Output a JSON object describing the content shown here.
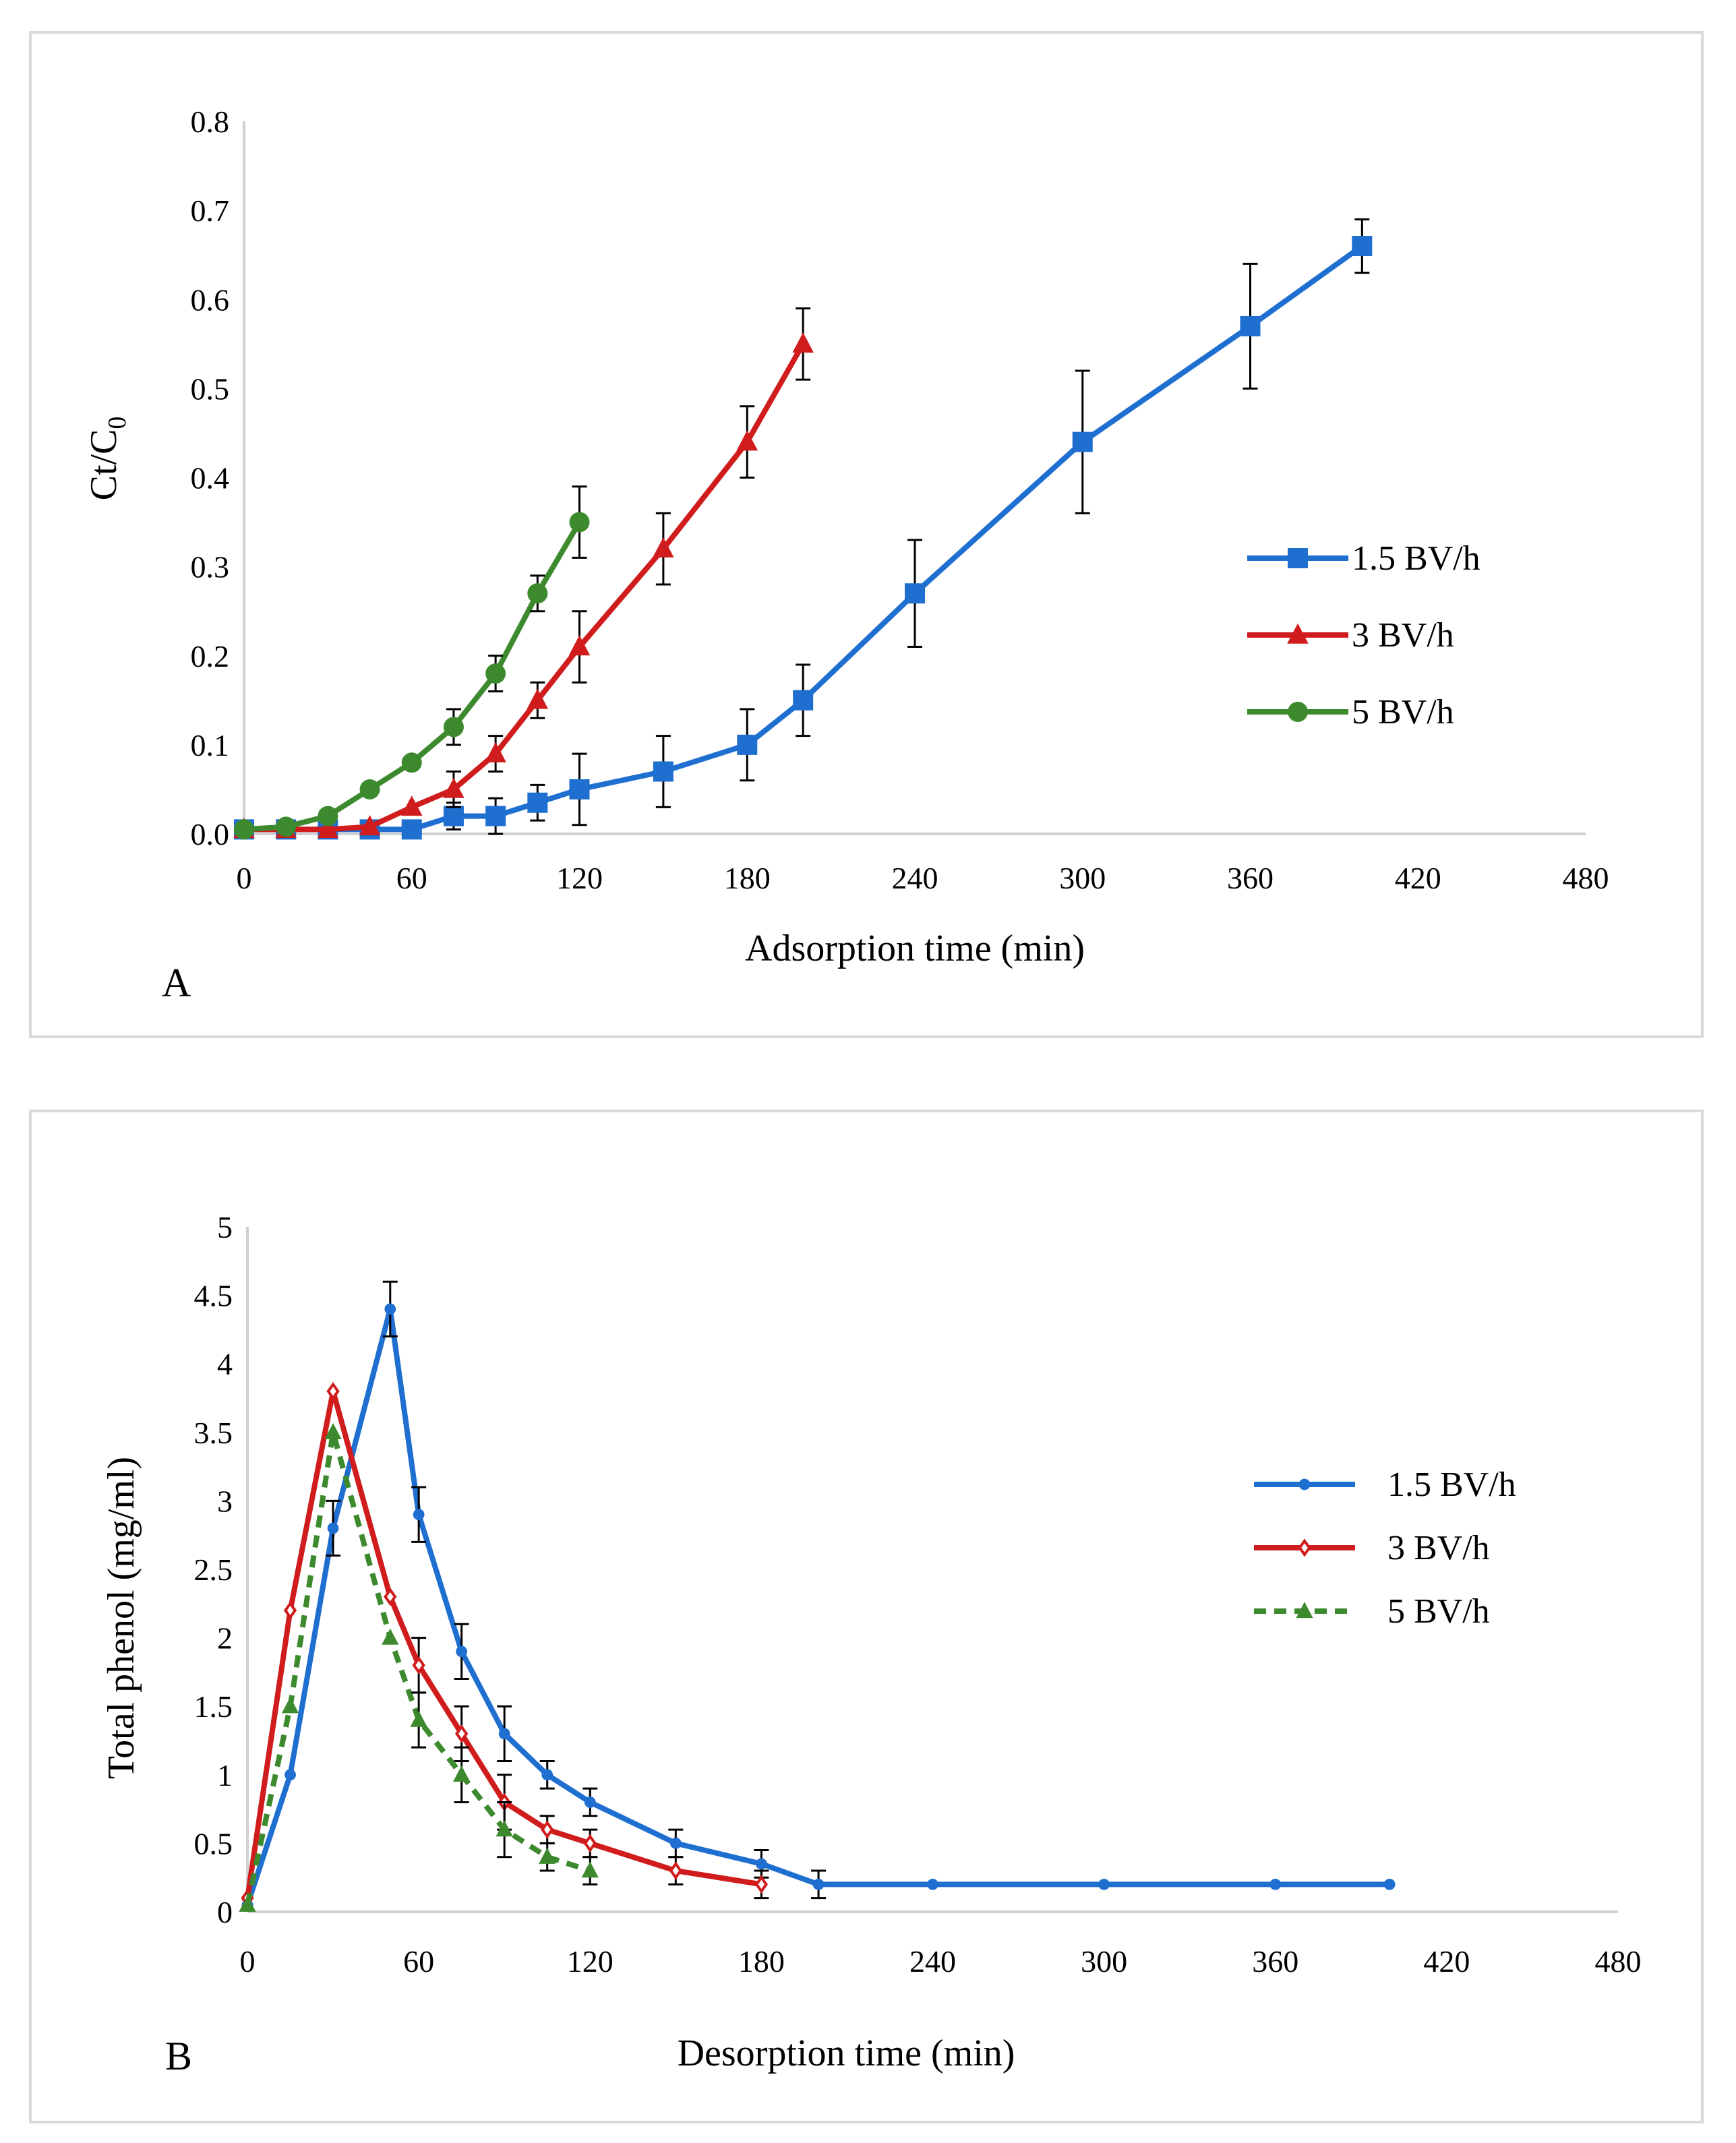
{
  "chart_data": [
    {
      "type": "line",
      "panel_label": "A",
      "xlabel": "Adsorption time (min)",
      "ylabel_main": "Ct/C",
      "ylabel_sub": "0",
      "xlim": [
        0,
        480
      ],
      "ylim": [
        0,
        0.8
      ],
      "x_ticks": [
        0,
        60,
        120,
        180,
        240,
        300,
        360,
        420,
        480
      ],
      "y_ticks": [
        0,
        0.1,
        0.2,
        0.3,
        0.4,
        0.5,
        0.6,
        0.7,
        0.8
      ],
      "y_tick_labels": [
        "0.0",
        "0.1",
        "0.2",
        "0.3",
        "0.4",
        "0.5",
        "0.6",
        "0.7",
        "0.8"
      ],
      "grid": false,
      "legend_position": "right",
      "series": [
        {
          "name": "1.5 BV/h",
          "color": "#1f6fd1",
          "marker": "square",
          "dashed": false,
          "x": [
            0,
            15,
            30,
            45,
            60,
            75,
            90,
            105,
            120,
            150,
            180,
            200,
            240,
            300,
            360,
            400
          ],
          "y": [
            0.005,
            0.005,
            0.005,
            0.005,
            0.005,
            0.02,
            0.02,
            0.035,
            0.05,
            0.07,
            0.1,
            0.15,
            0.27,
            0.44,
            0.57,
            0.66
          ],
          "err": [
            0,
            0,
            0,
            0,
            0,
            0.015,
            0.02,
            0.02,
            0.04,
            0.04,
            0.04,
            0.04,
            0.06,
            0.08,
            0.07,
            0.03
          ]
        },
        {
          "name": "3 BV/h",
          "color": "#d01c1c",
          "marker": "triangle",
          "dashed": false,
          "x": [
            0,
            15,
            30,
            45,
            60,
            75,
            90,
            105,
            120,
            150,
            180,
            200
          ],
          "y": [
            0.005,
            0.005,
            0.005,
            0.008,
            0.03,
            0.05,
            0.09,
            0.15,
            0.21,
            0.32,
            0.44,
            0.55
          ],
          "err": [
            0,
            0,
            0,
            0,
            0,
            0.02,
            0.02,
            0.02,
            0.04,
            0.04,
            0.04,
            0.04
          ]
        },
        {
          "name": "5 BV/h",
          "color": "#3d8a2e",
          "marker": "circle",
          "dashed": false,
          "x": [
            0,
            15,
            30,
            45,
            60,
            75,
            90,
            105,
            120
          ],
          "y": [
            0.005,
            0.008,
            0.02,
            0.05,
            0.08,
            0.12,
            0.18,
            0.27,
            0.35
          ],
          "err": [
            0,
            0,
            0,
            0,
            0,
            0.02,
            0.02,
            0.02,
            0.04
          ]
        }
      ]
    },
    {
      "type": "line",
      "panel_label": "B",
      "xlabel": "Desorption time (min)",
      "ylabel_main": "Total phenol (mg/ml)",
      "ylabel_sub": "",
      "xlim": [
        0,
        480
      ],
      "ylim": [
        0,
        5
      ],
      "x_ticks": [
        0,
        60,
        120,
        180,
        240,
        300,
        360,
        420,
        480
      ],
      "y_ticks": [
        0,
        0.5,
        1,
        1.5,
        2,
        2.5,
        3,
        3.5,
        4,
        4.5,
        5
      ],
      "y_tick_labels": [
        "0",
        "0.5",
        "1",
        "1.5",
        "2",
        "2.5",
        "3",
        "3.5",
        "4",
        "4.5",
        "5"
      ],
      "grid": false,
      "legend_position": "right",
      "series": [
        {
          "name": "1.5 BV/h",
          "color": "#1f6fd1",
          "marker": "small-circle",
          "dashed": false,
          "x": [
            0,
            15,
            30,
            50,
            60,
            75,
            90,
            105,
            120,
            150,
            180,
            200,
            240,
            300,
            360,
            400
          ],
          "y": [
            0.05,
            1.0,
            2.8,
            4.4,
            2.9,
            1.9,
            1.3,
            1.0,
            0.8,
            0.5,
            0.35,
            0.2,
            0.2,
            0.2,
            0.2,
            0.2
          ],
          "err": [
            0,
            0,
            0.2,
            0.2,
            0.2,
            0.2,
            0.2,
            0.1,
            0.1,
            0.1,
            0.1,
            0.1,
            0,
            0,
            0,
            0
          ]
        },
        {
          "name": "3 BV/h",
          "color": "#d01c1c",
          "marker": "diamond",
          "dashed": false,
          "x": [
            0,
            15,
            30,
            50,
            60,
            75,
            90,
            105,
            120,
            150,
            180
          ],
          "y": [
            0.1,
            2.2,
            3.8,
            2.3,
            1.8,
            1.3,
            0.8,
            0.6,
            0.5,
            0.3,
            0.2
          ],
          "err": [
            0,
            0,
            0,
            0,
            0.2,
            0.2,
            0.2,
            0.1,
            0.1,
            0.1,
            0.1
          ]
        },
        {
          "name": "5 BV/h",
          "color": "#3d8a2e",
          "marker": "triangle",
          "dashed": true,
          "x": [
            0,
            15,
            30,
            50,
            60,
            75,
            90,
            105,
            120
          ],
          "y": [
            0.05,
            1.5,
            3.5,
            2.0,
            1.4,
            1.0,
            0.6,
            0.4,
            0.3
          ],
          "err": [
            0,
            0,
            0,
            0,
            0.2,
            0.2,
            0.2,
            0.1,
            0.1
          ]
        }
      ]
    }
  ]
}
